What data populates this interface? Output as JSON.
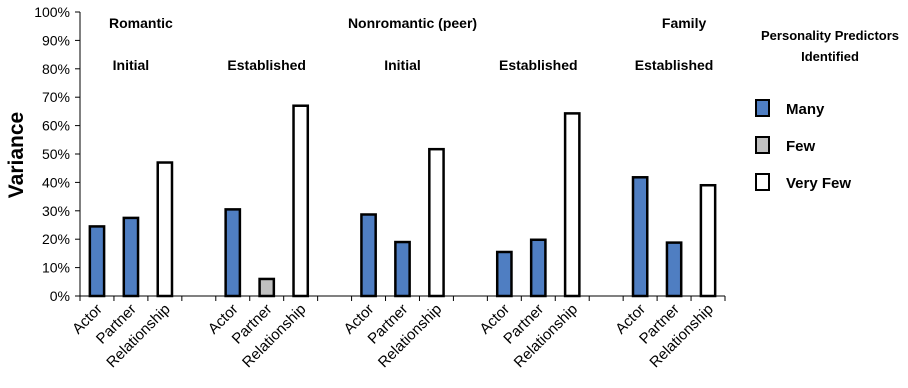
{
  "chart_data": {
    "type": "bar",
    "ylabel": "Variance",
    "ylim": [
      0,
      100
    ],
    "yticks": [
      "0%",
      "10%",
      "20%",
      "30%",
      "40%",
      "50%",
      "60%",
      "70%",
      "80%",
      "90%",
      "100%"
    ],
    "groups": [
      {
        "header": "Romantic",
        "subheader": "Initial",
        "categories": [
          "Actor",
          "Partner",
          "Relationship"
        ],
        "values": [
          24.5,
          27.5,
          47
        ],
        "levels": [
          "Many",
          "Many",
          "Very Few"
        ]
      },
      {
        "header": "",
        "subheader": "Established",
        "categories": [
          "Actor",
          "Partner",
          "Relationship"
        ],
        "values": [
          30.5,
          6,
          67
        ],
        "levels": [
          "Many",
          "Few",
          "Very Few"
        ]
      },
      {
        "header": "Nonromantic (peer)",
        "subheader": "Initial",
        "categories": [
          "Actor",
          "Partner",
          "Relationship"
        ],
        "values": [
          28.7,
          19,
          51.7
        ],
        "levels": [
          "Many",
          "Many",
          "Very Few"
        ]
      },
      {
        "header": "",
        "subheader": "Established",
        "categories": [
          "Actor",
          "Partner",
          "Relationship"
        ],
        "values": [
          15.5,
          19.8,
          64.3
        ],
        "levels": [
          "Many",
          "Many",
          "Very Few"
        ]
      },
      {
        "header": "Family",
        "subheader": "Established",
        "categories": [
          "Actor",
          "Partner",
          "Relationship"
        ],
        "values": [
          41.8,
          18.8,
          39
        ],
        "levels": [
          "Many",
          "Many",
          "Very Few"
        ]
      }
    ],
    "legend": {
      "title_line1": "Personality Predictors",
      "title_line2": "Identified",
      "placement": "right",
      "entries": [
        {
          "label": "Many",
          "color": "#4f7ec2"
        },
        {
          "label": "Few",
          "color": "#c0c0c0"
        },
        {
          "label": "Very Few",
          "color": "#ffffff"
        }
      ]
    },
    "grid": false
  }
}
